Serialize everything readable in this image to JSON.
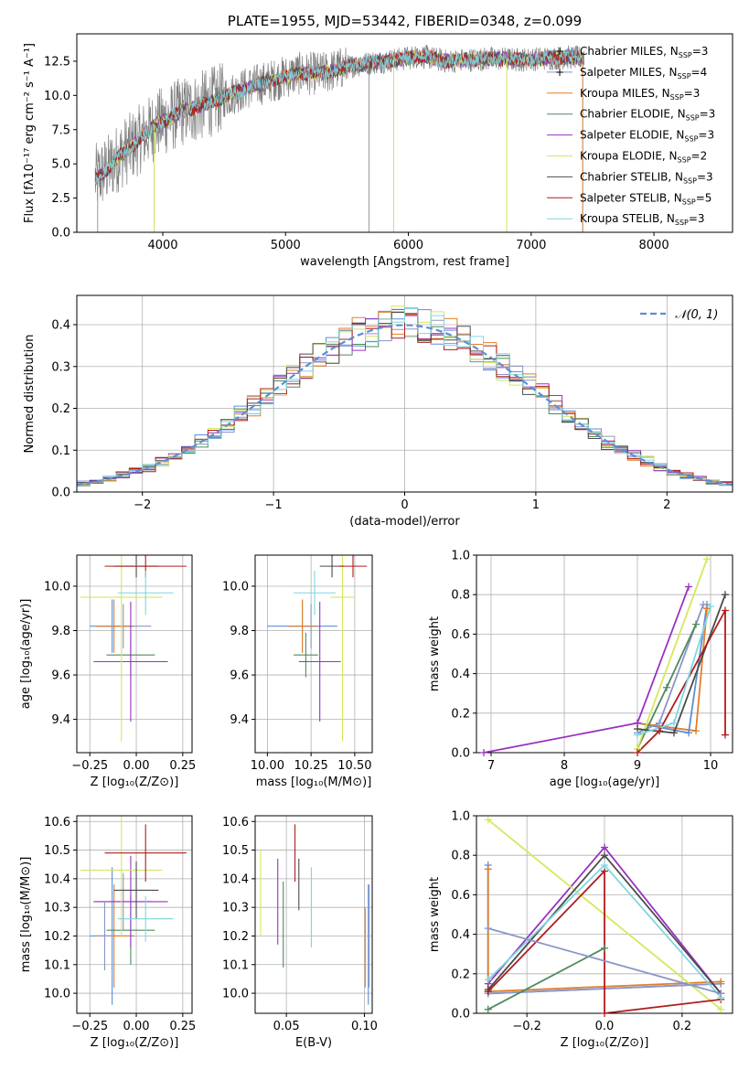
{
  "palette": {
    "chabrier_miles": "#5e8ed6",
    "salpeter_miles": "#8a95c8",
    "kroupa_miles": "#e07f2a",
    "chabrier_elodie": "#4f8a5e",
    "salpeter_elodie": "#9932c0",
    "kroupa_elodie": "#d4e85c",
    "chabrier_stelib": "#4b4b4b",
    "salpeter_stelib": "#b01c1c",
    "kroupa_stelib": "#7fd6e0",
    "data_spectrum": "#808080",
    "gaussian": "#5e8ed6",
    "grid": "#b0b0b0"
  },
  "chart_data": [
    {
      "id": "spectrum",
      "type": "line",
      "title": "PLATE=1955, MJD=53442, FIBERID=0348, z=0.099",
      "xlabel": "wavelength [Angstrom, rest frame]",
      "ylabel": "Flux [fλ10⁻¹⁷ erg cm⁻² s⁻¹ A⁻¹]",
      "xlim": [
        3300,
        8640
      ],
      "ylim": [
        0,
        14.5
      ],
      "xticks": [
        4000,
        5000,
        6000,
        7000,
        8000
      ],
      "yticks": [
        0.0,
        2.5,
        5.0,
        7.5,
        10.0,
        12.5
      ],
      "grid": false,
      "legend_position": "right",
      "continuum": [
        {
          "x": 3450,
          "y": 3.9
        },
        {
          "x": 3550,
          "y": 4.6
        },
        {
          "x": 3650,
          "y": 5.6
        },
        {
          "x": 3750,
          "y": 6.3
        },
        {
          "x": 3850,
          "y": 7.1
        },
        {
          "x": 3950,
          "y": 7.9
        },
        {
          "x": 4050,
          "y": 8.3
        },
        {
          "x": 4150,
          "y": 8.8
        },
        {
          "x": 4300,
          "y": 9.2
        },
        {
          "x": 4500,
          "y": 9.9
        },
        {
          "x": 4700,
          "y": 10.6
        },
        {
          "x": 4900,
          "y": 11.1
        },
        {
          "x": 5100,
          "y": 11.6
        },
        {
          "x": 5300,
          "y": 11.6
        },
        {
          "x": 5500,
          "y": 12.1
        },
        {
          "x": 5700,
          "y": 12.4
        },
        {
          "x": 5900,
          "y": 12.6
        },
        {
          "x": 6100,
          "y": 12.9
        },
        {
          "x": 6300,
          "y": 12.5
        },
        {
          "x": 6500,
          "y": 12.6
        },
        {
          "x": 6700,
          "y": 12.7
        },
        {
          "x": 6900,
          "y": 12.6
        },
        {
          "x": 7100,
          "y": 12.7
        },
        {
          "x": 7300,
          "y": 12.8
        },
        {
          "x": 7430,
          "y": 12.7
        }
      ],
      "data_end": 7430,
      "data_spikes": [
        {
          "x": 3470,
          "y": 0.0
        },
        {
          "x": 3930,
          "y": 0.0
        },
        {
          "x": 5680,
          "y": 0.0
        },
        {
          "x": 5880,
          "y": 0.0
        },
        {
          "x": 6800,
          "y": 0.0
        },
        {
          "x": 7420,
          "y": 0.0
        }
      ],
      "series": [
        {
          "name": "Chabrier MILES, N",
          "sub": "SSP",
          "suffix": "=3",
          "color": "#5e8ed6",
          "marker": true
        },
        {
          "name": "Salpeter MILES, N",
          "sub": "SSP",
          "suffix": "=4",
          "color": "#8a95c8",
          "marker": true
        },
        {
          "name": "Kroupa MILES, N",
          "sub": "SSP",
          "suffix": "=3",
          "color": "#e07f2a",
          "marker": false
        },
        {
          "name": "Chabrier ELODIE, N",
          "sub": "SSP",
          "suffix": "=3",
          "color": "#4f8a5e",
          "marker": false
        },
        {
          "name": "Salpeter ELODIE, N",
          "sub": "SSP",
          "suffix": "=3",
          "color": "#9932c0",
          "marker": false
        },
        {
          "name": "Kroupa ELODIE, N",
          "sub": "SSP",
          "suffix": "=2",
          "color": "#d4e85c",
          "marker": false
        },
        {
          "name": "Chabrier STELIB, N",
          "sub": "SSP",
          "suffix": "=3",
          "color": "#4b4b4b",
          "marker": false
        },
        {
          "name": "Salpeter STELIB, N",
          "sub": "SSP",
          "suffix": "=5",
          "color": "#b01c1c",
          "marker": false
        },
        {
          "name": "Kroupa STELIB, N",
          "sub": "SSP",
          "suffix": "=3",
          "color": "#7fd6e0",
          "marker": false
        }
      ]
    },
    {
      "id": "residuals",
      "type": "line",
      "xlabel": "(data-model)/error",
      "ylabel": "Normed distribution",
      "xlim": [
        -2.5,
        2.5
      ],
      "ylim": [
        0.0,
        0.47
      ],
      "xticks": [
        -2,
        -1,
        0,
        1,
        2
      ],
      "xtick_labels": [
        "−2",
        "−1",
        "0",
        "1",
        "2"
      ],
      "yticks": [
        0.0,
        0.1,
        0.2,
        0.3,
        0.4
      ],
      "grid": true,
      "legend_position": "top-right",
      "gaussian_label": "𝒩(0, 1)",
      "bin_width": 0.1,
      "histogram_series": [
        "chabrier_miles",
        "salpeter_miles",
        "kroupa_miles",
        "chabrier_elodie",
        "salpeter_elodie",
        "kroupa_elodie",
        "chabrier_stelib",
        "salpeter_stelib",
        "kroupa_stelib"
      ]
    },
    {
      "id": "age_vs_Z",
      "type": "scatter",
      "xlabel": "Z [log₁₀(Z/Z⊙)]",
      "ylabel": "age  [log₁₀(age/yr)]",
      "xlim": [
        -0.32,
        0.3
      ],
      "ylim": [
        9.25,
        10.14
      ],
      "xticks": [
        -0.25,
        0.0,
        0.25
      ],
      "xtick_labels": [
        "−0.25",
        "0.00",
        "0.25"
      ],
      "yticks": [
        9.4,
        9.6,
        9.8,
        10.0
      ],
      "grid": true,
      "points": [
        {
          "s": "chabrier_miles",
          "x": -0.13,
          "xe": 0.12,
          "y": 9.82,
          "ye": 0.12
        },
        {
          "s": "salpeter_miles",
          "x": -0.07,
          "xe": 0.15,
          "y": 9.82,
          "ye": 0.1
        },
        {
          "s": "kroupa_miles",
          "x": -0.12,
          "xe": 0.1,
          "y": 9.82,
          "ye": 0.12
        },
        {
          "s": "chabrier_elodie",
          "x": -0.03,
          "xe": 0.13,
          "y": 9.69,
          "ye": 0.1
        },
        {
          "s": "salpeter_elodie",
          "x": -0.03,
          "xe": 0.2,
          "y": 9.66,
          "ye": 0.27
        },
        {
          "s": "kroupa_elodie",
          "x": -0.08,
          "xe": 0.22,
          "y": 9.95,
          "ye": 0.65
        },
        {
          "s": "chabrier_stelib",
          "x": 0.0,
          "xe": 0.12,
          "y": 10.09,
          "ye": 0.05
        },
        {
          "s": "salpeter_stelib",
          "x": 0.05,
          "xe": 0.22,
          "y": 10.09,
          "ye": 0.05
        },
        {
          "s": "kroupa_stelib",
          "x": 0.05,
          "xe": 0.15,
          "y": 9.97,
          "ye": 0.1
        }
      ]
    },
    {
      "id": "age_vs_mass",
      "type": "scatter",
      "xlabel": "mass [log₁₀(M/M⊙)]",
      "xlim": [
        9.93,
        10.6
      ],
      "ylim": [
        9.25,
        10.14
      ],
      "xticks": [
        10.0,
        10.25,
        10.5
      ],
      "xtick_labels": [
        "10.00",
        "10.25",
        "10.50"
      ],
      "yticks": [
        9.4,
        9.6,
        9.8,
        10.0
      ],
      "grid": true,
      "points": [
        {
          "s": "chabrier_miles",
          "x": 10.2,
          "xe": 0.2,
          "y": 9.82,
          "ye": 0.12
        },
        {
          "s": "salpeter_miles",
          "x": 10.25,
          "xe": 0.05,
          "y": 9.82,
          "ye": 0.1
        },
        {
          "s": "kroupa_miles",
          "x": 10.2,
          "xe": 0.08,
          "y": 9.82,
          "ye": 0.12
        },
        {
          "s": "chabrier_elodie",
          "x": 10.22,
          "xe": 0.07,
          "y": 9.69,
          "ye": 0.1
        },
        {
          "s": "salpeter_elodie",
          "x": 10.3,
          "xe": 0.12,
          "y": 9.66,
          "ye": 0.27
        },
        {
          "s": "kroupa_elodie",
          "x": 10.43,
          "xe": 0.07,
          "y": 9.95,
          "ye": 0.65
        },
        {
          "s": "chabrier_stelib",
          "x": 10.37,
          "xe": 0.07,
          "y": 10.09,
          "ye": 0.05
        },
        {
          "s": "salpeter_stelib",
          "x": 10.49,
          "xe": 0.08,
          "y": 10.09,
          "ye": 0.05
        },
        {
          "s": "kroupa_stelib",
          "x": 10.27,
          "xe": 0.12,
          "y": 9.97,
          "ye": 0.1
        }
      ]
    },
    {
      "id": "weight_vs_age",
      "type": "line",
      "xlabel": "age  [log₁₀(age/yr)]",
      "ylabel": "mass weight",
      "xlim": [
        6.8,
        10.3
      ],
      "ylim": [
        0.0,
        1.0
      ],
      "xticks": [
        7,
        8,
        9,
        10
      ],
      "yticks": [
        0.0,
        0.2,
        0.4,
        0.6,
        0.8,
        1.0
      ],
      "grid": true,
      "series": [
        {
          "s": "chabrier_miles",
          "x": [
            9.0,
            9.7,
            9.95
          ],
          "y": [
            0.15,
            0.1,
            0.75
          ]
        },
        {
          "s": "salpeter_miles",
          "x": [
            9.0,
            9.3,
            9.9
          ],
          "y": [
            0.1,
            0.15,
            0.75
          ]
        },
        {
          "s": "kroupa_miles",
          "x": [
            9.0,
            9.8,
            9.95
          ],
          "y": [
            0.15,
            0.11,
            0.73
          ]
        },
        {
          "s": "chabrier_elodie",
          "x": [
            9.0,
            9.4,
            9.8
          ],
          "y": [
            0.02,
            0.33,
            0.65
          ]
        },
        {
          "s": "salpeter_elodie",
          "x": [
            6.9,
            9.0,
            9.7
          ],
          "y": [
            0.0,
            0.15,
            0.84
          ]
        },
        {
          "s": "kroupa_elodie",
          "x": [
            9.0,
            9.95
          ],
          "y": [
            0.02,
            0.98
          ]
        },
        {
          "s": "chabrier_stelib",
          "x": [
            9.0,
            9.5,
            10.2
          ],
          "y": [
            0.12,
            0.1,
            0.8
          ]
        },
        {
          "s": "salpeter_stelib",
          "x": [
            9.0,
            9.3,
            10.2,
            10.2
          ],
          "y": [
            0.0,
            0.11,
            0.72,
            0.09
          ]
        },
        {
          "s": "kroupa_stelib",
          "x": [
            9.0,
            9.5,
            10.0
          ],
          "y": [
            0.09,
            0.15,
            0.74
          ]
        }
      ]
    },
    {
      "id": "mass_vs_Z",
      "type": "scatter",
      "xlabel": "Z [log₁₀(Z/Z⊙)]",
      "ylabel": "mass [log₁₀(M/M⊙)]",
      "xlim": [
        -0.32,
        0.3
      ],
      "ylim": [
        9.93,
        10.62
      ],
      "xticks": [
        -0.25,
        0.0,
        0.25
      ],
      "xtick_labels": [
        "−0.25",
        "0.00",
        "0.25"
      ],
      "yticks": [
        10.0,
        10.1,
        10.2,
        10.3,
        10.4,
        10.5,
        10.6
      ],
      "grid": true,
      "points": [
        {
          "s": "chabrier_miles",
          "x": -0.13,
          "xe": 0.12,
          "y": 10.2,
          "ye": 0.24
        },
        {
          "s": "salpeter_miles",
          "x": -0.07,
          "xe": 0.15,
          "y": 10.32,
          "ye": 0.1
        },
        {
          "s": "kroupa_miles",
          "x": -0.12,
          "xe": 0.1,
          "y": 10.2,
          "ye": 0.18
        },
        {
          "s": "chabrier_elodie",
          "x": -0.03,
          "xe": 0.13,
          "y": 10.22,
          "ye": 0.12
        },
        {
          "s": "salpeter_elodie",
          "x": -0.03,
          "xe": 0.2,
          "y": 10.32,
          "ye": 0.16
        },
        {
          "s": "kroupa_elodie",
          "x": -0.08,
          "xe": 0.22,
          "y": 10.43,
          "ye": 0.23
        },
        {
          "s": "chabrier_stelib",
          "x": 0.0,
          "xe": 0.12,
          "y": 10.36,
          "ye": 0.1
        },
        {
          "s": "salpeter_stelib",
          "x": 0.05,
          "xe": 0.22,
          "y": 10.49,
          "ye": 0.1
        },
        {
          "s": "kroupa_stelib",
          "x": 0.05,
          "xe": 0.15,
          "y": 10.26,
          "ye": 0.08
        },
        {
          "s": "salpeter_miles",
          "x": -0.17,
          "xe": 0.04,
          "y": 10.2,
          "ye": 0.12
        }
      ]
    },
    {
      "id": "mass_vs_ebv",
      "type": "scatter",
      "xlabel": "E(B-V)",
      "xlim": [
        0.03,
        0.105
      ],
      "ylim": [
        9.93,
        10.62
      ],
      "xticks": [
        0.05,
        0.1
      ],
      "xtick_labels": [
        "0.05",
        "0.10"
      ],
      "yticks": [
        10.0,
        10.1,
        10.2,
        10.3,
        10.4,
        10.5,
        10.6
      ],
      "grid": true,
      "points": [
        {
          "s": "kroupa_elodie",
          "x": 0.0335,
          "y": 10.35,
          "ye": 0.15
        },
        {
          "s": "salpeter_elodie",
          "x": 0.0445,
          "y": 10.32,
          "ye": 0.15
        },
        {
          "s": "chabrier_elodie",
          "x": 0.048,
          "y": 10.24,
          "ye": 0.15
        },
        {
          "s": "salpeter_stelib",
          "x": 0.0555,
          "y": 10.49,
          "ye": 0.1
        },
        {
          "s": "chabrier_stelib",
          "x": 0.058,
          "y": 10.38,
          "ye": 0.09
        },
        {
          "s": "kroupa_stelib",
          "x": 0.066,
          "y": 10.3,
          "ye": 0.14
        },
        {
          "s": "kroupa_miles",
          "x": 0.1005,
          "y": 10.16,
          "ye": 0.14
        },
        {
          "s": "chabrier_miles",
          "x": 0.1025,
          "y": 10.17,
          "ye": 0.21
        },
        {
          "s": "salpeter_miles",
          "x": 0.103,
          "y": 10.2,
          "ye": 0.18
        }
      ]
    },
    {
      "id": "weight_vs_Z",
      "type": "line",
      "xlabel": "Z [log₁₀(Z/Z⊙)]",
      "ylabel": "mass weight",
      "xlim": [
        -0.33,
        0.33
      ],
      "ylim": [
        0.0,
        1.0
      ],
      "xticks": [
        -0.2,
        0.0,
        0.2
      ],
      "xtick_labels": [
        "−0.2",
        "0.0",
        "0.2"
      ],
      "yticks": [
        0.0,
        0.2,
        0.4,
        0.6,
        0.8,
        1.0
      ],
      "grid": true,
      "series": [
        {
          "s": "chabrier_miles",
          "x": [
            -0.3,
            -0.3,
            0.3
          ],
          "y": [
            0.75,
            0.1,
            0.15
          ]
        },
        {
          "s": "salpeter_miles",
          "x": [
            -0.3,
            0.3
          ],
          "y": [
            0.1,
            0.15
          ]
        },
        {
          "s": "kroupa_miles",
          "x": [
            -0.3,
            -0.3,
            0.3
          ],
          "y": [
            0.73,
            0.11,
            0.16
          ]
        },
        {
          "s": "chabrier_elodie",
          "x": [
            -0.3,
            0.0
          ],
          "y": [
            0.02,
            0.33
          ]
        },
        {
          "s": "salpeter_elodie",
          "x": [
            -0.3,
            0.0,
            0.3
          ],
          "y": [
            0.15,
            0.84,
            0.1
          ]
        },
        {
          "s": "kroupa_elodie",
          "x": [
            -0.3,
            0.3
          ],
          "y": [
            0.98,
            0.02
          ]
        },
        {
          "s": "chabrier_stelib",
          "x": [
            -0.3,
            0.0,
            0.3
          ],
          "y": [
            0.12,
            0.8,
            0.1
          ]
        },
        {
          "s": "salpeter_stelib",
          "x": [
            -0.3,
            0.0,
            0.0,
            0.3
          ],
          "y": [
            0.11,
            0.72,
            0.0,
            0.07
          ]
        },
        {
          "s": "kroupa_stelib",
          "x": [
            -0.3,
            0.0,
            0.3
          ],
          "y": [
            0.17,
            0.75,
            0.08
          ]
        },
        {
          "s": "salpeter_miles",
          "x": [
            -0.3,
            0.3
          ],
          "y": [
            0.43,
            0.1
          ]
        }
      ]
    }
  ]
}
